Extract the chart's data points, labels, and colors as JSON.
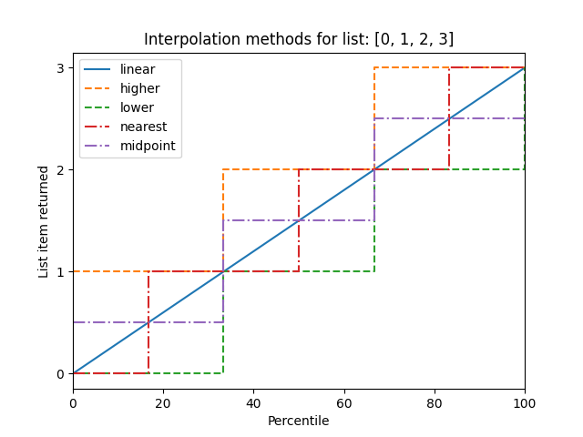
{
  "title": "Interpolation methods for list: [0, 1, 2, 3]",
  "xlabel": "Percentile",
  "ylabel": "List item returned",
  "xlim": [
    0,
    100
  ],
  "ylim": [
    -0.04,
    3.13
  ],
  "linear": {
    "x": [
      0,
      100
    ],
    "y": [
      0,
      3
    ],
    "color": "#1f77b4",
    "linestyle": "-",
    "linewidth": 1.5,
    "label": "linear"
  },
  "higher": {
    "x": [
      0,
      0,
      33.33,
      33.33,
      66.67,
      66.67,
      100
    ],
    "y": [
      1,
      1,
      1,
      2,
      2,
      3,
      3
    ],
    "color": "#ff7f0e",
    "linestyle": "--",
    "linewidth": 1.5,
    "label": "higher"
  },
  "lower": {
    "x": [
      0,
      33.33,
      33.33,
      66.67,
      66.67,
      100,
      100
    ],
    "y": [
      0,
      0,
      1,
      1,
      2,
      2,
      3
    ],
    "color": "#2ca02c",
    "linestyle": "--",
    "linewidth": 1.5,
    "label": "lower"
  },
  "nearest": {
    "x": [
      0,
      16.67,
      16.67,
      50,
      50,
      83.33,
      83.33,
      100
    ],
    "y": [
      0,
      0,
      1,
      1,
      2,
      2,
      3,
      3
    ],
    "color": "#d62728",
    "linestyle": "-.",
    "linewidth": 1.5,
    "label": "nearest"
  },
  "midpoint": {
    "x": [
      0,
      0,
      33.33,
      33.33,
      66.67,
      66.67,
      100
    ],
    "y": [
      0.5,
      0.5,
      0.5,
      1.5,
      1.5,
      2.5,
      2.5
    ],
    "color": "#9467bd",
    "linestyle": "-.",
    "linewidth": 1.5,
    "label": "midpoint"
  },
  "figsize": [
    6.4,
    4.8
  ],
  "dpi": 100,
  "yticks": [
    0,
    1,
    2,
    3
  ],
  "xticks": [
    0,
    20,
    40,
    60,
    80,
    100
  ]
}
